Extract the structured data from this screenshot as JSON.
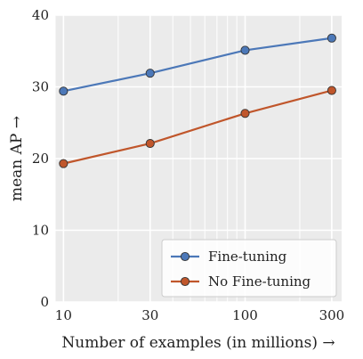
{
  "chart_data": {
    "type": "line",
    "xscale": "log",
    "x": [
      10,
      30,
      100,
      300
    ],
    "xlim": [
      9,
      340
    ],
    "ylim": [
      0,
      40
    ],
    "xticks": [
      10,
      30,
      100,
      300
    ],
    "xtick_labels": [
      "10",
      "30",
      "100",
      "300"
    ],
    "yticks": [
      0,
      10,
      20,
      30,
      40
    ],
    "ytick_labels": [
      "0",
      "10",
      "20",
      "30",
      "40"
    ],
    "xlabel": "Number of examples (in millions) →",
    "ylabel": "mean AP →",
    "grid": true,
    "legend_position": "bottom-right",
    "series": [
      {
        "name": "Fine-tuning",
        "values": [
          29.4,
          31.9,
          35.1,
          36.8
        ],
        "color": "#4c78b8"
      },
      {
        "name": "No Fine-tuning",
        "values": [
          19.3,
          22.1,
          26.3,
          29.5
        ],
        "color": "#c0562b"
      }
    ]
  },
  "colors": {
    "plot_background": "#ebebeb",
    "grid": "#ffffff",
    "legend_background": "#ffffff",
    "legend_border": "#cccccc"
  }
}
